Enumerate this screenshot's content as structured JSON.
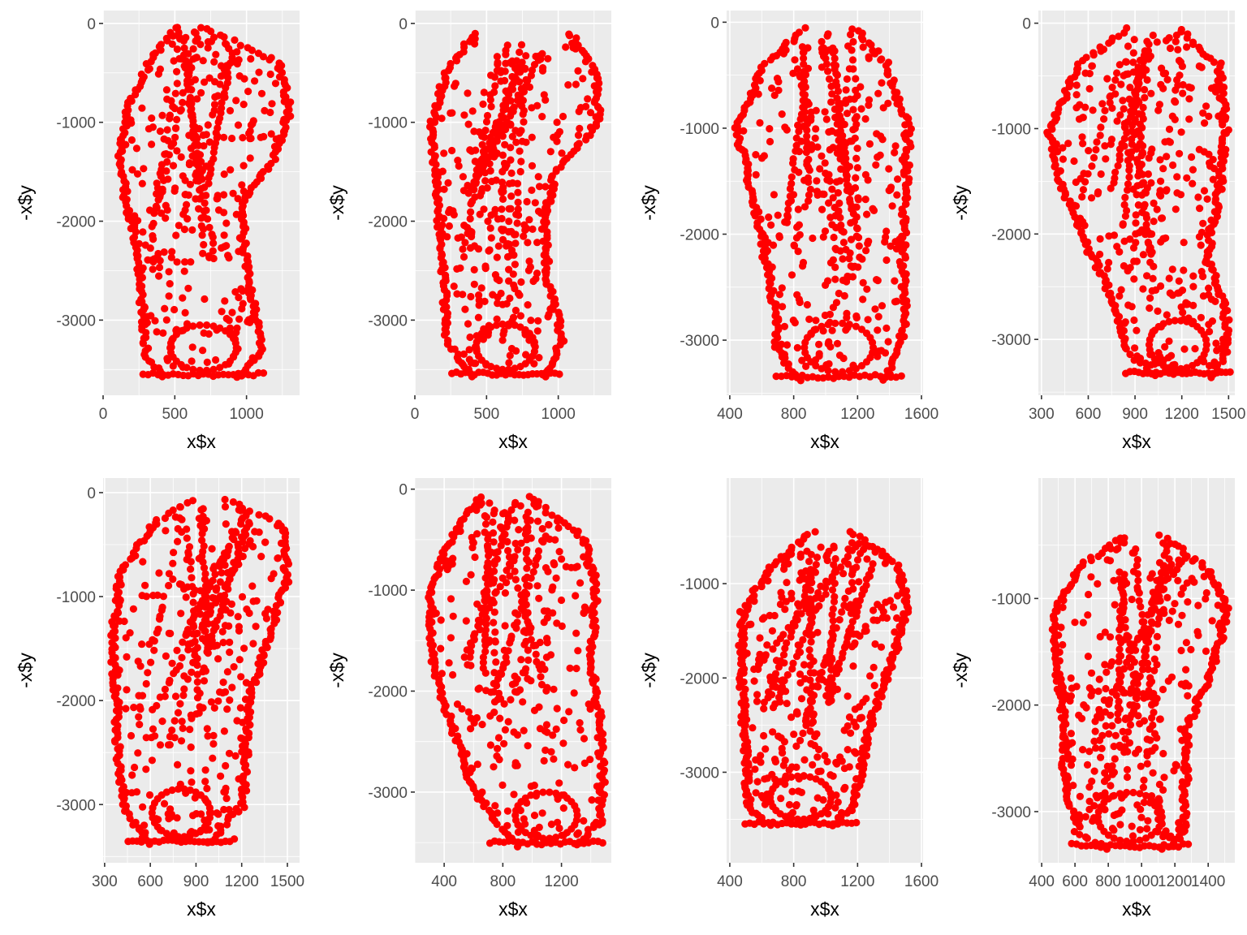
{
  "figure": {
    "background": "#FFFFFF",
    "panel_background": "#EBEBEB",
    "grid_color": "#FFFFFF",
    "point_color": "#FF0000"
  },
  "chart_data": [
    {
      "type": "scatter",
      "xlabel": "x$x",
      "ylabel": "-x$y",
      "grid": true,
      "legend": "none",
      "xlim": [
        0,
        1370
      ],
      "ylim": [
        -3760,
        130
      ],
      "xticks": [
        0,
        500,
        1000
      ],
      "xtick_labels": [
        "0",
        "500",
        "1000"
      ],
      "yticks": [
        0,
        -1000,
        -2000,
        -3000
      ],
      "ytick_labels": [
        "0",
        "-1000",
        "-2000",
        "-3000"
      ],
      "shape": {
        "ymin": -3580,
        "ymax": -30,
        "bounds": [
          [
            -30,
            500,
            700
          ],
          [
            -400,
            300,
            1250
          ],
          [
            -900,
            140,
            1320
          ],
          [
            -1400,
            100,
            1200
          ],
          [
            -1800,
            140,
            1000
          ],
          [
            -2300,
            230,
            1000
          ],
          [
            -2900,
            250,
            1080
          ],
          [
            -3350,
            280,
            1120
          ],
          [
            -3580,
            400,
            950
          ]
        ]
      }
    },
    {
      "type": "scatter",
      "xlabel": "x$x",
      "ylabel": "-x$y",
      "grid": true,
      "legend": "none",
      "xlim": [
        0,
        1370
      ],
      "ylim": [
        -3760,
        130
      ],
      "xticks": [
        0,
        500,
        1000
      ],
      "xtick_labels": [
        "0",
        "500",
        "1000"
      ],
      "yticks": [
        0,
        -1000,
        -2000,
        -3000
      ],
      "ytick_labels": [
        "0",
        "-1000",
        "-2000",
        "-3000"
      ],
      "shape": {
        "ymin": -3570,
        "ymax": -100,
        "bounds": [
          [
            -100,
            400,
            1100
          ],
          [
            -500,
            200,
            1280
          ],
          [
            -1000,
            100,
            1300
          ],
          [
            -1500,
            120,
            1000
          ],
          [
            -2000,
            150,
            920
          ],
          [
            -2600,
            180,
            950
          ],
          [
            -3200,
            200,
            1050
          ],
          [
            -3570,
            380,
            920
          ]
        ]
      }
    },
    {
      "type": "scatter",
      "xlabel": "x$x",
      "ylabel": "-x$y",
      "grid": true,
      "legend": "none",
      "xlim": [
        380,
        1610
      ],
      "ylim": [
        -3520,
        110
      ],
      "xticks": [
        400,
        800,
        1200,
        1600
      ],
      "xtick_labels": [
        "400",
        "800",
        "1200",
        "1600"
      ],
      "yticks": [
        0,
        -1000,
        -2000,
        -3000
      ],
      "ytick_labels": [
        "0",
        "-1000",
        "-2000",
        "-3000"
      ],
      "shape": {
        "ymin": -3370,
        "ymax": -60,
        "bounds": [
          [
            -60,
            850,
            1200
          ],
          [
            -400,
            600,
            1400
          ],
          [
            -1000,
            420,
            1540
          ],
          [
            -1600,
            520,
            1520
          ],
          [
            -2200,
            600,
            1500
          ],
          [
            -2700,
            660,
            1520
          ],
          [
            -3100,
            680,
            1480
          ],
          [
            -3370,
            820,
            1400
          ]
        ]
      }
    },
    {
      "type": "scatter",
      "xlabel": "x$x",
      "ylabel": "-x$y",
      "grid": true,
      "legend": "none",
      "xlim": [
        280,
        1540
      ],
      "ylim": [
        -3530,
        120
      ],
      "xticks": [
        300,
        600,
        900,
        1200,
        1500
      ],
      "xtick_labels": [
        "300",
        "600",
        "900",
        "1200",
        "1500"
      ],
      "yticks": [
        0,
        -1000,
        -2000,
        -3000
      ],
      "ytick_labels": [
        "0",
        "-1000",
        "-2000",
        "-3000"
      ],
      "shape": {
        "ymin": -3350,
        "ymax": -60,
        "bounds": [
          [
            -60,
            820,
            1200
          ],
          [
            -400,
            520,
            1460
          ],
          [
            -1000,
            330,
            1500
          ],
          [
            -1600,
            420,
            1460
          ],
          [
            -2200,
            600,
            1380
          ],
          [
            -2700,
            760,
            1500
          ],
          [
            -3100,
            840,
            1510
          ],
          [
            -3350,
            1000,
            1420
          ]
        ]
      }
    },
    {
      "type": "scatter",
      "xlabel": "x$x",
      "ylabel": "-x$y",
      "grid": true,
      "legend": "none",
      "xlim": [
        290,
        1580
      ],
      "ylim": [
        -3560,
        140
      ],
      "xticks": [
        300,
        600,
        900,
        1200,
        1500
      ],
      "xtick_labels": [
        "300",
        "600",
        "900",
        "1200",
        "1500"
      ],
      "yticks": [
        0,
        -1000,
        -2000,
        -3000
      ],
      "ytick_labels": [
        "0",
        "-1000",
        "-2000",
        "-3000"
      ],
      "shape": {
        "ymin": -3380,
        "ymax": -70,
        "bounds": [
          [
            -70,
            850,
            1100
          ],
          [
            -300,
            600,
            1480
          ],
          [
            -800,
            380,
            1520
          ],
          [
            -1400,
            330,
            1400
          ],
          [
            -2000,
            360,
            1260
          ],
          [
            -2600,
            370,
            1250
          ],
          [
            -3000,
            400,
            1230
          ],
          [
            -3380,
            560,
            1000
          ]
        ]
      }
    },
    {
      "type": "scatter",
      "xlabel": "x$x",
      "ylabel": "-x$y",
      "grid": true,
      "legend": "none",
      "xlim": [
        200,
        1540
      ],
      "ylim": [
        -3700,
        110
      ],
      "xticks": [
        400,
        800,
        1200
      ],
      "xtick_labels": [
        "400",
        "800",
        "1200"
      ],
      "yticks": [
        0,
        -1000,
        -2000,
        -3000
      ],
      "ytick_labels": [
        "0",
        "-1000",
        "-2000",
        "-3000"
      ],
      "shape": {
        "ymin": -3530,
        "ymax": -80,
        "bounds": [
          [
            -80,
            620,
            1000
          ],
          [
            -500,
            420,
            1380
          ],
          [
            -1000,
            280,
            1460
          ],
          [
            -1700,
            300,
            1420
          ],
          [
            -2300,
            420,
            1480
          ],
          [
            -2900,
            560,
            1500
          ],
          [
            -3300,
            720,
            1480
          ],
          [
            -3530,
            900,
            1320
          ]
        ]
      }
    },
    {
      "type": "scatter",
      "xlabel": "x$x",
      "ylabel": "-x$y",
      "grid": true,
      "legend": "none",
      "xlim": [
        380,
        1610
      ],
      "ylim": [
        -3960,
        120
      ],
      "xticks": [
        400,
        800,
        1200,
        1600
      ],
      "xtick_labels": [
        "400",
        "800",
        "1200",
        "1600"
      ],
      "yticks": [
        -1000,
        -2000,
        -3000
      ],
      "ytick_labels": [
        "-1000",
        "-2000",
        "-3000"
      ],
      "shape": {
        "ymin": -3570,
        "ymax": -460,
        "bounds": [
          [
            -460,
            900,
            1180
          ],
          [
            -800,
            650,
            1480
          ],
          [
            -1300,
            460,
            1530
          ],
          [
            -1900,
            450,
            1420
          ],
          [
            -2500,
            470,
            1300
          ],
          [
            -3000,
            480,
            1240
          ],
          [
            -3400,
            500,
            1180
          ],
          [
            -3570,
            650,
            1050
          ]
        ]
      }
    },
    {
      "type": "scatter",
      "xlabel": "x$x",
      "ylabel": "-x$y",
      "grid": true,
      "legend": "none",
      "xlim": [
        380,
        1560
      ],
      "ylim": [
        -3480,
        130
      ],
      "xticks": [
        400,
        600,
        800,
        1000,
        1200,
        1400
      ],
      "xtick_labels": [
        "400",
        "600",
        "800",
        "1000",
        "1200",
        "1400"
      ],
      "yticks": [
        -1000,
        -2000,
        -3000
      ],
      "ytick_labels": [
        "-1000",
        "-2000",
        "-3000"
      ],
      "shape": {
        "ymin": -3350,
        "ymax": -420,
        "bounds": [
          [
            -420,
            860,
            1140
          ],
          [
            -700,
            620,
            1400
          ],
          [
            -1100,
            460,
            1530
          ],
          [
            -1600,
            470,
            1460
          ],
          [
            -2200,
            520,
            1300
          ],
          [
            -2800,
            520,
            1280
          ],
          [
            -3200,
            600,
            1280
          ],
          [
            -3350,
            780,
            1160
          ]
        ]
      }
    }
  ]
}
